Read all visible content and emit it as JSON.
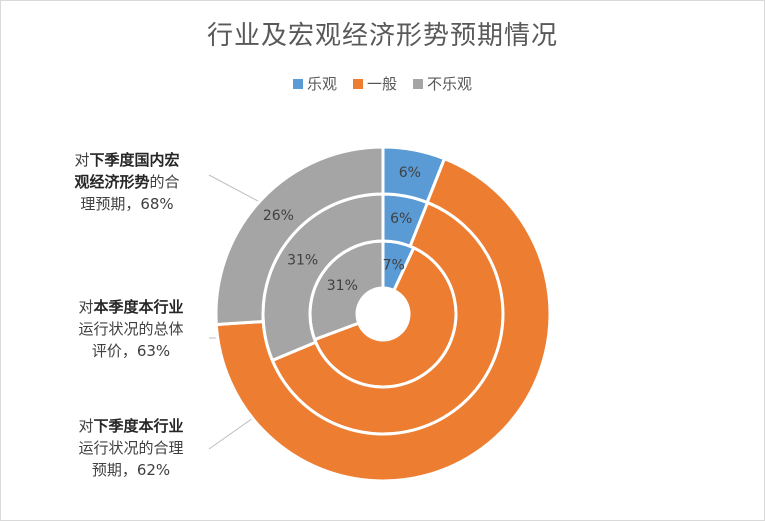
{
  "chart_data": {
    "type": "pie",
    "subtype": "multi-ring doughnut",
    "title": "行业及宏观经济形势预期情况",
    "legend_position": "top",
    "categories": [
      "乐观",
      "一般",
      "不乐观"
    ],
    "colors": [
      "#5b9bd5",
      "#ed7d31",
      "#a5a5a5"
    ],
    "series": [
      {
        "name": "对本季度本行业运行状况的总体评价",
        "ring": "inner",
        "values": [
          7,
          63,
          31
        ],
        "labels": [
          "7%",
          "",
          "31%"
        ],
        "callout_lines": [
          [
            {
              "t": "对",
              "b": false
            },
            {
              "t": "本季度本行业",
              "b": true
            }
          ],
          [
            {
              "t": "运行状况的总体",
              "b": false
            }
          ],
          [
            {
              "t": "评价，63%",
              "b": false
            }
          ]
        ]
      },
      {
        "name": "对下季度本行业运行状况的合理预期",
        "ring": "middle",
        "values": [
          6,
          62,
          31
        ],
        "labels": [
          "6%",
          "",
          "31%"
        ],
        "callout_lines": [
          [
            {
              "t": "对",
              "b": false
            },
            {
              "t": "下季度本行业",
              "b": true
            }
          ],
          [
            {
              "t": "运行状况的合理",
              "b": false
            }
          ],
          [
            {
              "t": "预期，62%",
              "b": false
            }
          ]
        ]
      },
      {
        "name": "对下季度国内宏观经济形势的合理预期",
        "ring": "outer",
        "values": [
          6,
          68,
          26
        ],
        "labels": [
          "6%",
          "",
          "26%"
        ],
        "callout_lines": [
          [
            {
              "t": "对",
              "b": false
            },
            {
              "t": "下季度国内宏",
              "b": true
            }
          ],
          [
            {
              "t": "观经济形势",
              "b": true
            },
            {
              "t": "的合",
              "b": false
            }
          ],
          [
            {
              "t": "理预期，68%",
              "b": false
            }
          ]
        ]
      }
    ]
  }
}
